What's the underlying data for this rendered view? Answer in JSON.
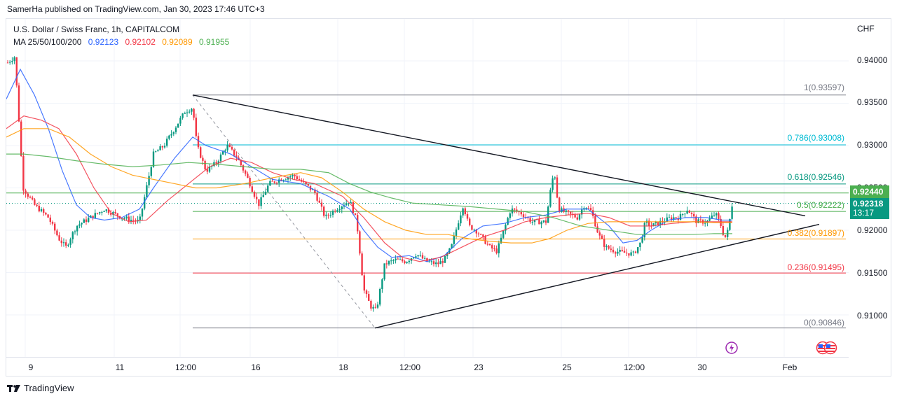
{
  "header": {
    "publish_line": "SamerHa published on TradingView.com, Jan 30, 2023 17:46 UTC+3"
  },
  "legend": {
    "symbol_line": "U.S. Dollar / Swiss Franc, 1h, CAPITALCOM",
    "ma_label": "MA 25/50/100/200",
    "ma_values": [
      {
        "period": 25,
        "value": "0.92123",
        "color": "#2962ff"
      },
      {
        "period": 50,
        "value": "0.92102",
        "color": "#f23645"
      },
      {
        "period": 100,
        "value": "0.92089",
        "color": "#ff9800"
      },
      {
        "period": 200,
        "value": "0.91955",
        "color": "#4caf50"
      }
    ]
  },
  "price_axis": {
    "currency": "CHF",
    "ticks": [
      "0.94000",
      "0.93500",
      "0.93000",
      "0.92500",
      "0.92000",
      "0.91500",
      "0.91000"
    ],
    "tag_high": {
      "value": "0.92440",
      "color": "#4caf50"
    },
    "tag_current": {
      "value": "0.92318",
      "countdown": "13:17",
      "color": "#089981"
    }
  },
  "time_axis": {
    "ticks": [
      "9",
      "11",
      "12:00",
      "16",
      "18",
      "12:00",
      "23",
      "25",
      "12:00",
      "30",
      "Feb"
    ]
  },
  "fib_levels": [
    {
      "label": "1(0.93597)",
      "ratio": 1,
      "price": 0.93597,
      "color": "#787b86"
    },
    {
      "label": "0.786(0.93008)",
      "ratio": 0.786,
      "price": 0.93008,
      "color": "#00bcd4"
    },
    {
      "label": "0.618(0.92546)",
      "ratio": 0.618,
      "price": 0.92546,
      "color": "#089981"
    },
    {
      "label": "0.5(0.92222)",
      "ratio": 0.5,
      "price": 0.92222,
      "color": "#4caf50"
    },
    {
      "label": "0.382(0.91897)",
      "ratio": 0.382,
      "price": 0.91897,
      "color": "#ff9800"
    },
    {
      "label": "0.236(0.91495)",
      "ratio": 0.236,
      "price": 0.91495,
      "color": "#f23645"
    },
    {
      "label": "0(0.90846)",
      "ratio": 0,
      "price": 0.90846,
      "color": "#787b86"
    }
  ],
  "footer": {
    "brand": "TradingView"
  },
  "chart_data": {
    "type": "candlestick",
    "title": "U.S. Dollar / Swiss Franc, 1h, CAPITALCOM",
    "xlabel": "",
    "ylabel": "CHF",
    "ylim": [
      0.906,
      0.943
    ],
    "x_ticks": [
      "9",
      "11",
      "12:00",
      "16",
      "18",
      "12:00",
      "23",
      "25",
      "12:00",
      "30",
      "Feb"
    ],
    "y_ticks": [
      0.94,
      0.935,
      0.93,
      0.925,
      0.92,
      0.915,
      0.91
    ],
    "grid": true,
    "indicators": [
      {
        "name": "MA 25",
        "value": 0.92123,
        "color": "#2962ff"
      },
      {
        "name": "MA 50",
        "value": 0.92102,
        "color": "#f23645"
      },
      {
        "name": "MA 100",
        "value": 0.92089,
        "color": "#ff9800"
      },
      {
        "name": "MA 200",
        "value": 0.91955,
        "color": "#4caf50"
      }
    ],
    "last_price": 0.92318,
    "horizontal_line": 0.9244,
    "fibonacci_retracement": {
      "high": 0.93597,
      "low": 0.90846,
      "levels": [
        [
          1,
          0.93597
        ],
        [
          0.786,
          0.93008
        ],
        [
          0.618,
          0.92546
        ],
        [
          0.5,
          0.92222
        ],
        [
          0.382,
          0.91897
        ],
        [
          0.236,
          0.91495
        ],
        [
          0,
          0.90846
        ]
      ]
    },
    "trendlines": [
      {
        "name": "descending resistance",
        "from": [
          "Jan 12 12:00",
          0.93597
        ],
        "to": [
          "Jan 31",
          0.9218
        ]
      },
      {
        "name": "ascending support",
        "from": [
          "Jan 19",
          0.90846
        ],
        "to": [
          "Jan 31",
          0.9207
        ]
      }
    ],
    "approx_price_path": [
      {
        "x": "Jan 9",
        "close": 0.94
      },
      {
        "x": "Jan 10",
        "close": 0.92
      },
      {
        "x": "Jan 11",
        "close": 0.9225
      },
      {
        "x": "Jan 12 12:00",
        "close": 0.935
      },
      {
        "x": "Jan 13",
        "close": 0.928
      },
      {
        "x": "Jan 16",
        "close": 0.926
      },
      {
        "x": "Jan 17",
        "close": 0.924
      },
      {
        "x": "Jan 18",
        "close": 0.922
      },
      {
        "x": "Jan 19",
        "close": 0.909
      },
      {
        "x": "Jan 19 12:00",
        "close": 0.916
      },
      {
        "x": "Jan 20",
        "close": 0.9165
      },
      {
        "x": "Jan 23",
        "close": 0.921
      },
      {
        "x": "Jan 24",
        "close": 0.9225
      },
      {
        "x": "Jan 24 late",
        "close": 0.9275
      },
      {
        "x": "Jan 25",
        "close": 0.9225
      },
      {
        "x": "Jan 26",
        "close": 0.917
      },
      {
        "x": "Jan 27",
        "close": 0.9215
      },
      {
        "x": "Jan 30",
        "close": 0.9215
      },
      {
        "x": "Jan 30 17:00",
        "close": 0.92318
      }
    ]
  }
}
